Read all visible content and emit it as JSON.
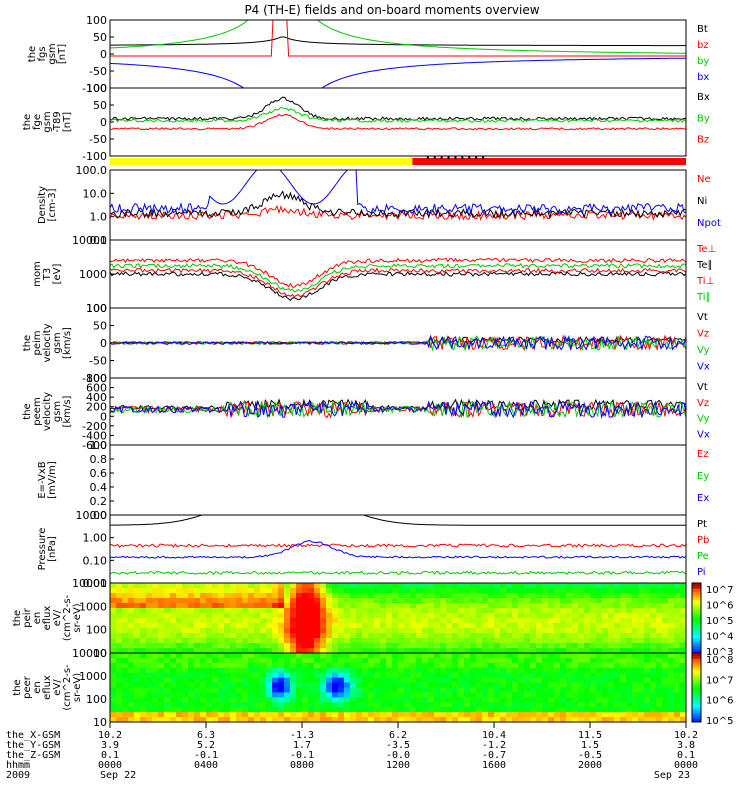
{
  "title": "P4 (TH-E) fields and on-board moments overview",
  "chart_data": [
    {
      "type": "line",
      "ylabel": [
        "the",
        "fgs",
        "gsm",
        "[nT]"
      ],
      "yticks": [
        "100",
        "50",
        "0",
        "-50",
        "-100"
      ],
      "ylim": [
        -100,
        100
      ],
      "series": [
        {
          "name": "Bt",
          "color": "#000000"
        },
        {
          "name": "bz",
          "color": "#ff0000"
        },
        {
          "name": "by",
          "color": "#00c800"
        },
        {
          "name": "bx",
          "color": "#0000ff"
        }
      ]
    },
    {
      "type": "line",
      "ylabel": [
        "the",
        "fge",
        "gsm",
        "-T89",
        "[nT]"
      ],
      "yticks": [
        "100",
        "50",
        "0",
        "-50",
        "-100"
      ],
      "ylim": [
        -120,
        100
      ],
      "series": [
        {
          "name": "Bx",
          "color": "#000000"
        },
        {
          "name": "By",
          "color": "#00c800"
        },
        {
          "name": "Bz",
          "color": "#ff0000"
        }
      ]
    },
    {
      "type": "line",
      "ylabel": [
        "Density",
        "[cm-3]"
      ],
      "yticks": [
        "100.0",
        "10.0",
        "1.0",
        "0.1"
      ],
      "ylim": [
        0.07,
        150
      ],
      "log": true,
      "series": [
        {
          "name": "Ne",
          "color": "#ff0000"
        },
        {
          "name": "Ni",
          "color": "#000000"
        },
        {
          "name": "Npot",
          "color": "#0000ff"
        }
      ]
    },
    {
      "type": "line",
      "ylabel": [
        "mom",
        "T3",
        "[eV]"
      ],
      "yticks": [
        "10000",
        "1000",
        "100"
      ],
      "ylim": [
        10,
        10000
      ],
      "log": true,
      "series": [
        {
          "name": "Te⊥",
          "color": "#ff0000"
        },
        {
          "name": "Te∥",
          "color": "#000000"
        },
        {
          "name": "Ti⊥",
          "color": "#ff0000"
        },
        {
          "name": "Ti∥",
          "color": "#00c800"
        }
      ]
    },
    {
      "type": "line",
      "ylabel": [
        "the",
        "peim",
        "velocity",
        "gsm",
        "[km/s]"
      ],
      "yticks": [
        "100",
        "50",
        "0",
        "-50",
        "-100"
      ],
      "ylim": [
        -100,
        100
      ],
      "series": [
        {
          "name": "Vt",
          "color": "#000000"
        },
        {
          "name": "Vz",
          "color": "#ff0000"
        },
        {
          "name": "Vy",
          "color": "#00c800"
        },
        {
          "name": "Vx",
          "color": "#0000ff"
        }
      ]
    },
    {
      "type": "line",
      "ylabel": [
        "the",
        "peem",
        "velocity",
        "gsm",
        "[km/s]"
      ],
      "yticks": [
        "800",
        "600",
        "400",
        "200",
        "0",
        "-200",
        "-400",
        "-600"
      ],
      "ylim": [
        -600,
        800
      ],
      "series": [
        {
          "name": "Vt",
          "color": "#000000"
        },
        {
          "name": "Vz",
          "color": "#ff0000"
        },
        {
          "name": "Vy",
          "color": "#00c800"
        },
        {
          "name": "Vx",
          "color": "#0000ff"
        }
      ]
    },
    {
      "type": "line",
      "ylabel": [
        "E=-VxB",
        "[mV/m]"
      ],
      "yticks": [
        "1.0",
        "0.8",
        "0.6",
        "0.4",
        "0.2",
        "0.0"
      ],
      "ylim": [
        0,
        1
      ],
      "series": [
        {
          "name": "Ez",
          "color": "#ff0000"
        },
        {
          "name": "Ey",
          "color": "#00c800"
        },
        {
          "name": "Ex",
          "color": "#0000ff"
        }
      ]
    },
    {
      "type": "line",
      "ylabel": [
        "Pressure",
        "[nPa]"
      ],
      "yticks": [
        "10.00",
        "1.00",
        "0.10",
        "0.01"
      ],
      "ylim": [
        0.006,
        30
      ],
      "log": true,
      "series": [
        {
          "name": "Pt",
          "color": "#000000"
        },
        {
          "name": "Pb",
          "color": "#ff0000"
        },
        {
          "name": "Pe",
          "color": "#00c800"
        },
        {
          "name": "Pi",
          "color": "#0000ff"
        }
      ]
    },
    {
      "type": "heatmap",
      "ylabel": [
        "the",
        "peir",
        "en",
        "eflux",
        "eV/",
        "(cm^2-s-",
        "sr-eV)"
      ],
      "yticks": [
        "10000",
        "1000",
        "100",
        "10"
      ],
      "colorbar": [
        "10^7",
        "10^6",
        "10^5",
        "10^4",
        "10^3"
      ]
    },
    {
      "type": "heatmap",
      "ylabel": [
        "the",
        "peer",
        "en",
        "eflux",
        "eV/",
        "(cm^2-s-",
        "sr-eV)"
      ],
      "yticks": [
        "10000",
        "1000",
        "100",
        "10"
      ],
      "colorbar": [
        "10^8",
        "10^7",
        "10^6",
        "10^5"
      ]
    }
  ],
  "bottom_axis": {
    "labels": [
      "the_X-GSM",
      "the_Y-GSM",
      "the_Z-GSM",
      "hhmm",
      "2009"
    ],
    "columns": [
      [
        "10.2",
        "3.9",
        "0.1",
        "0000",
        "Sep 22"
      ],
      [
        "6.3",
        "5.2",
        "-0.1",
        "0400",
        ""
      ],
      [
        "-1.3",
        "1.7",
        "-0.1",
        "0800",
        ""
      ],
      [
        "6.2",
        "-3.5",
        "-0.0",
        "1200",
        ""
      ],
      [
        "10.4",
        "-1.2",
        "-0.7",
        "1600",
        ""
      ],
      [
        "11.5",
        "1.5",
        "-0.5",
        "2000",
        ""
      ],
      [
        "10.2",
        "3.8",
        "0.1",
        "0000",
        "Sep 23"
      ]
    ]
  }
}
